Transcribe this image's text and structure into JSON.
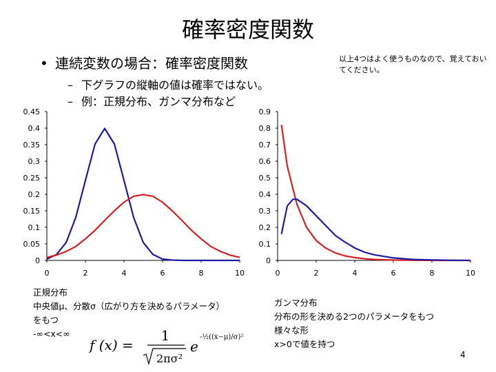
{
  "title": "確率密度関数",
  "bullet": "連続変数の場合：確率密度関数",
  "sub_items": [
    "下グラフの縦軸の値は確率ではない。",
    "例：正規分布、ガンマ分布など"
  ],
  "note": "以上4つはよく使うものなので、覚えておいてください。",
  "left_caption": [
    "正規分布",
    "中央値μ、分散σ（広がり方を決めるパラメータ）",
    "をもつ",
    "-∞<x<∞"
  ],
  "right_caption": [
    "ガンマ分布",
    "分布の形を決める2つのパラメータをもつ",
    "様々な形",
    "x>0で値を持つ"
  ],
  "formula": {
    "lhs": "f (x) =",
    "numerator": "1",
    "denominator": "2πσ²",
    "base": "e",
    "exponent": "-½((x−μ)/σ)²"
  },
  "page_number": "4",
  "colors": {
    "blue": "#1a1aa6",
    "red": "#d42020"
  },
  "chart_data": [
    {
      "type": "line",
      "title": "正規分布",
      "xlim": [
        0,
        10
      ],
      "ylim": [
        0,
        0.45
      ],
      "x_ticks": [
        0,
        2,
        4,
        6,
        8,
        10
      ],
      "y_ticks": [
        0,
        0.05,
        0.1,
        0.15,
        0.2,
        0.25,
        0.3,
        0.35,
        0.4,
        0.45
      ],
      "x_tick_labels": [
        "0",
        "2",
        "4",
        "6",
        "8",
        "10"
      ],
      "y_tick_labels": [
        "0",
        "0.05",
        "0.1",
        "0.15",
        "0.2",
        "0.25",
        "0.3",
        "0.35",
        "0.4",
        "0.45"
      ],
      "series": [
        {
          "name": "blue",
          "color": "#1a1aa6",
          "x": [
            0,
            0.5,
            1,
            1.5,
            2,
            2.5,
            3,
            3.5,
            4,
            4.5,
            5,
            5.5,
            6,
            6.5,
            7,
            7.5,
            8,
            8.5,
            9,
            9.5,
            10
          ],
          "y": [
            0.004,
            0.018,
            0.054,
            0.13,
            0.242,
            0.352,
            0.399,
            0.352,
            0.242,
            0.13,
            0.054,
            0.018,
            0.004,
            0.001,
            0,
            0,
            0,
            0,
            0,
            0,
            0
          ]
        },
        {
          "name": "red",
          "color": "#d42020",
          "x": [
            0,
            0.5,
            1,
            1.5,
            2,
            2.5,
            3,
            3.5,
            4,
            4.5,
            5,
            5.5,
            6,
            6.5,
            7,
            7.5,
            8,
            8.5,
            9,
            9.5,
            10
          ],
          "y": [
            0.009,
            0.016,
            0.027,
            0.042,
            0.065,
            0.091,
            0.121,
            0.15,
            0.176,
            0.194,
            0.199,
            0.194,
            0.176,
            0.15,
            0.121,
            0.091,
            0.065,
            0.042,
            0.027,
            0.016,
            0.009
          ]
        }
      ]
    },
    {
      "type": "line",
      "title": "ガンマ分布",
      "xlim": [
        0,
        10
      ],
      "ylim": [
        0,
        0.9
      ],
      "x_ticks": [
        0,
        2,
        4,
        6,
        8,
        10
      ],
      "y_ticks": [
        0,
        0.1,
        0.2,
        0.3,
        0.4,
        0.5,
        0.6,
        0.7,
        0.8,
        0.9
      ],
      "x_tick_labels": [
        "0",
        "2",
        "4",
        "6",
        "8",
        "10"
      ],
      "y_tick_labels": [
        "0",
        "0.1",
        "0.2",
        "0.3",
        "0.4",
        "0.5",
        "0.6",
        "0.7",
        "0.8",
        "0.9"
      ],
      "series": [
        {
          "name": "red",
          "color": "#d42020",
          "x": [
            0.2,
            0.5,
            1,
            1.5,
            2,
            2.5,
            3,
            3.5,
            4,
            4.5,
            5,
            6,
            7,
            8,
            9,
            10
          ],
          "y": [
            0.82,
            0.57,
            0.34,
            0.2,
            0.12,
            0.074,
            0.045,
            0.027,
            0.017,
            0.01,
            0.006,
            0.002,
            0.001,
            0,
            0,
            0
          ],
          "x_start": 0.2
        },
        {
          "name": "blue",
          "color": "#1a1aa6",
          "x": [
            0.2,
            0.5,
            0.8,
            1,
            1.5,
            2,
            2.5,
            3,
            3.5,
            4,
            4.5,
            5,
            6,
            7,
            8,
            9,
            10
          ],
          "y": [
            0.16,
            0.33,
            0.37,
            0.37,
            0.33,
            0.27,
            0.21,
            0.15,
            0.11,
            0.075,
            0.05,
            0.034,
            0.015,
            0.006,
            0.003,
            0.001,
            0
          ]
        }
      ]
    }
  ]
}
